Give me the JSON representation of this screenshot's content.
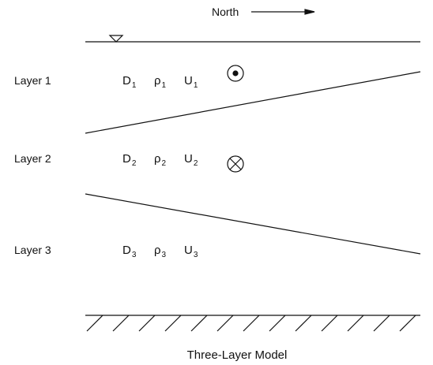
{
  "header": {
    "north": "North"
  },
  "layers": [
    {
      "label": "Layer 1",
      "symbols": [
        {
          "base": "D",
          "sub": "1"
        },
        {
          "base": "ρ",
          "sub": "1"
        },
        {
          "base": "U",
          "sub": "1"
        }
      ]
    },
    {
      "label": "Layer 2",
      "symbols": [
        {
          "base": "D",
          "sub": "2"
        },
        {
          "base": "ρ",
          "sub": "2"
        },
        {
          "base": "U",
          "sub": "2"
        }
      ]
    },
    {
      "label": "Layer 3",
      "symbols": [
        {
          "base": "D",
          "sub": "3"
        },
        {
          "base": "ρ",
          "sub": "3"
        },
        {
          "base": "U",
          "sub": "3"
        }
      ]
    }
  ],
  "caption": "Three-Layer Model"
}
